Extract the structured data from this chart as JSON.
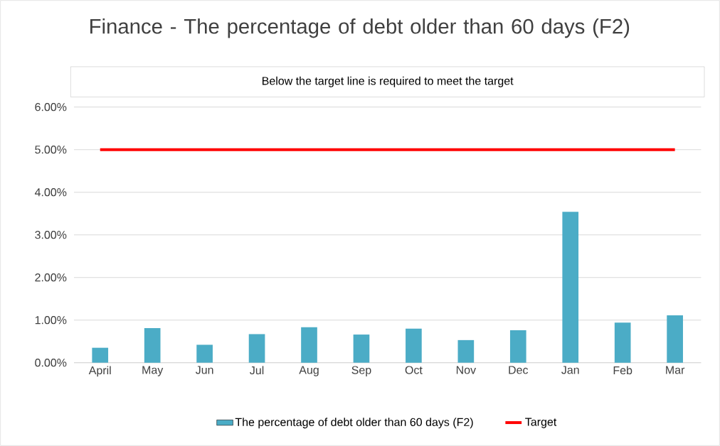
{
  "chart_data": {
    "type": "bar",
    "title": "Finance - The percentage of debt older than 60 days (F2)",
    "annotations": [
      "Below the target line is required to meet the target"
    ],
    "categories": [
      "April",
      "May",
      "Jun",
      "Jul",
      "Aug",
      "Sep",
      "Oct",
      "Nov",
      "Dec",
      "Jan",
      "Feb",
      "Mar"
    ],
    "series": [
      {
        "name": "The percentage of debt older than 60 days (F2)",
        "color": "#4bacc6",
        "values": [
          0.35,
          0.81,
          0.42,
          0.67,
          0.83,
          0.66,
          0.8,
          0.53,
          0.76,
          3.54,
          0.94,
          1.11
        ]
      },
      {
        "name": "Target",
        "type": "line",
        "color": "#ff0000",
        "values": [
          5,
          5,
          5,
          5,
          5,
          5,
          5,
          5,
          5,
          5,
          5,
          5
        ]
      }
    ],
    "ylim": [
      0,
      6
    ],
    "yticks": [
      {
        "value": 0,
        "label": "0.00%"
      },
      {
        "value": 1,
        "label": "1.00%"
      },
      {
        "value": 2,
        "label": "2.00%"
      },
      {
        "value": 3,
        "label": "3.00%"
      },
      {
        "value": 4,
        "label": "4.00%"
      },
      {
        "value": 5,
        "label": "5.00%"
      },
      {
        "value": 6,
        "label": "6.00%"
      }
    ],
    "grid": "y",
    "legend": "bottom"
  }
}
